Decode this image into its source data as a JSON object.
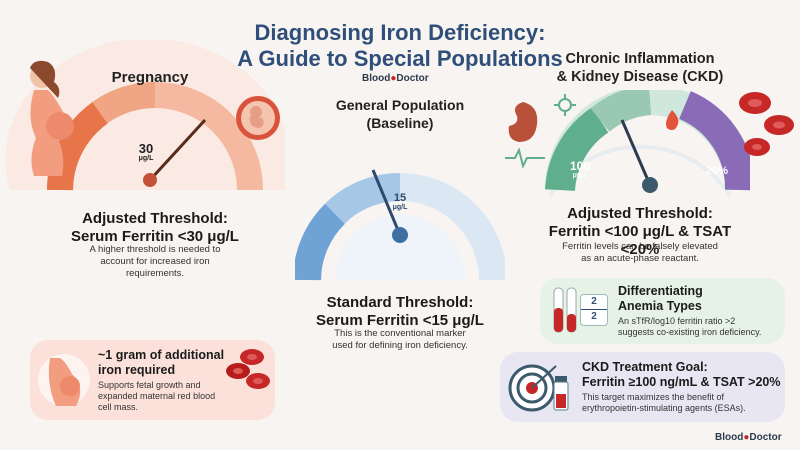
{
  "header": {
    "title_line1": "Diagnosing Iron Deficiency:",
    "title_line2": "A Guide to Special Populations",
    "brand_blood": "Blood",
    "brand_doctor": "Doctor"
  },
  "pregnancy": {
    "title": "Pregnancy",
    "gauge_value": "30",
    "gauge_unit": "μg/L",
    "threshold_label": "Adjusted Threshold:",
    "threshold_value": "Serum Ferritin <30 μg/L",
    "desc_line1": "A higher threshold is needed to",
    "desc_line2": "account for increased iron",
    "desc_line3": "requirements."
  },
  "general": {
    "title_line1": "General Population",
    "title_line2": "(Baseline)",
    "gauge_value": "15",
    "gauge_unit": "μg/L",
    "threshold_label": "Standard Threshold:",
    "threshold_value": "Serum Ferritin <15 μg/L",
    "desc_line1": "This is the conventional marker",
    "desc_line2": "used for defining iron deficiency."
  },
  "ckd": {
    "title_line1": "Chronic Inflammation",
    "title_line2": "& Kidney Disease (CKD)",
    "gauge_left_value": "100",
    "gauge_left_unit": "μg/L",
    "gauge_right_value": "20%",
    "threshold_label": "Adjusted Threshold:",
    "threshold_value": "Ferritin <100 μg/L & TSAT <20%",
    "desc_line1": "Ferritin levels can be falsely elevated",
    "desc_line2": "as an acute-phase reactant."
  },
  "card_iron": {
    "title_line1": "~1 gram of additional",
    "title_line2": "iron required",
    "desc_line1": "Supports fetal growth and",
    "desc_line2": "expanded maternal red blood",
    "desc_line3": "cell mass."
  },
  "card_anemia": {
    "title_line1": "Differentiating",
    "title_line2": "Anemia Types",
    "desc_line1": "An sTfR/log10 ferritin ratio >2",
    "desc_line2": "suggests co-existing iron deficiency.",
    "ratio_top": "2",
    "ratio_bottom": "2"
  },
  "card_ckd": {
    "title_line1": "CKD Treatment Goal:",
    "title_line2": "Ferritin ≥100 ng/mL & TSAT >20%",
    "desc_line1": "This target maximizes the benefit of",
    "desc_line2": "erythropoietin-stimulating agents (ESAs)."
  },
  "colors": {
    "title_blue": "#2f4f7a",
    "pregnancy_orange": "#e8744a",
    "general_blue": "#6fa3d6",
    "ckd_green": "#5fae8c",
    "ckd_purple": "#8a6bb8",
    "blood_red": "#c62828"
  },
  "icons": [
    "pregnant-woman-icon",
    "fetus-icon",
    "kidney-icon",
    "virus-icon",
    "flame-icon",
    "red-blood-cell-icon",
    "test-tube-icon",
    "target-icon",
    "vial-icon",
    "ecg-line-icon"
  ]
}
